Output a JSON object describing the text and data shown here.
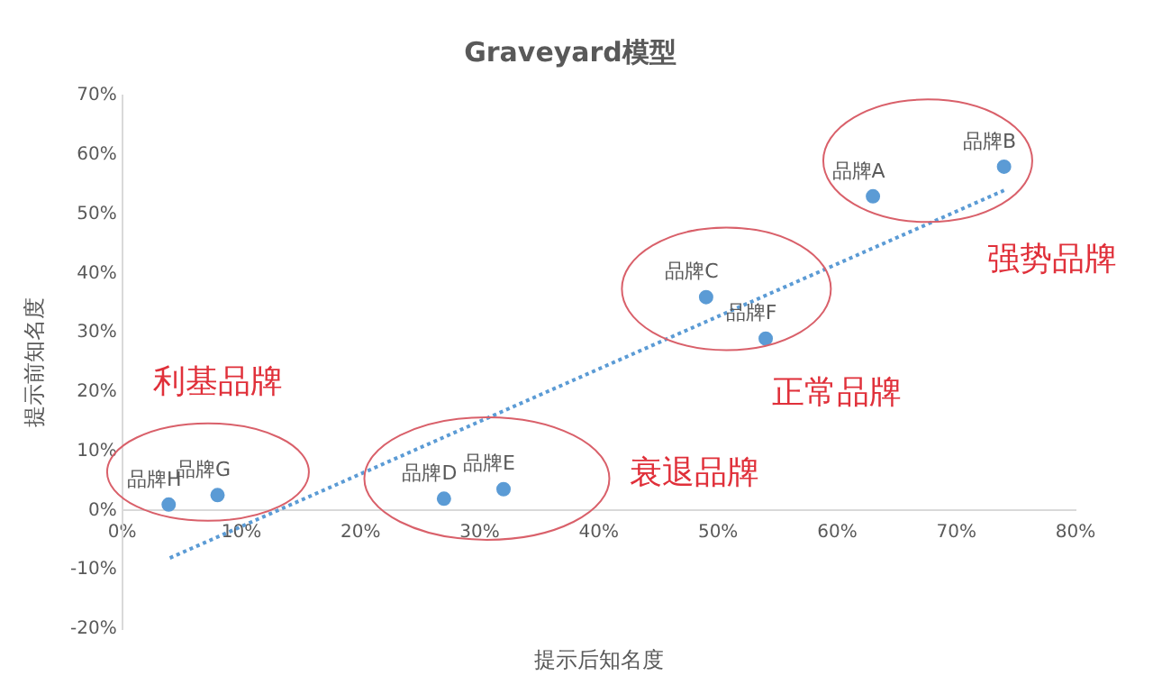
{
  "chart_data": {
    "type": "scatter",
    "title": "Graveyard模型",
    "xlabel": "提示后知名度",
    "ylabel": "提示前知名度",
    "series": [
      {
        "name": "品牌A",
        "color": "#5b9bd5",
        "x": [
          63
        ],
        "values": [
          53
        ]
      },
      {
        "name": "品牌B",
        "color": "#5b9bd5",
        "x": [
          74
        ],
        "values": [
          58
        ]
      },
      {
        "name": "品牌C",
        "color": "#5b9bd5",
        "x": [
          49
        ],
        "values": [
          36
        ]
      },
      {
        "name": "品牌D",
        "color": "#5b9bd5",
        "x": [
          27
        ],
        "values": [
          2
        ]
      },
      {
        "name": "品牌E",
        "color": "#5b9bd5",
        "x": [
          32
        ],
        "values": [
          3.6
        ]
      },
      {
        "name": "品牌F",
        "color": "#5b9bd5",
        "x": [
          54
        ],
        "values": [
          29
        ]
      },
      {
        "name": "品牌G",
        "color": "#5b9bd5",
        "x": [
          8
        ],
        "values": [
          2.6
        ]
      },
      {
        "name": "品牌H",
        "color": "#5b9bd5",
        "x": [
          3.9
        ],
        "values": [
          1
        ]
      },
      {
        "type": "line",
        "color": "#5b9bd5",
        "x": [
          4,
          74
        ],
        "values": [
          -8,
          54
        ],
        "line_style": "dotted",
        "marker": "none"
      }
    ],
    "annotations": [
      "利基品牌",
      "衰退品牌",
      "正常品牌",
      "强势品牌"
    ],
    "marker": "circle",
    "grid": false,
    "legend": false,
    "xlim": [
      0,
      80
    ],
    "xticks": [
      {
        "value": 0,
        "label": "0%"
      },
      {
        "value": 10,
        "label": "10%"
      },
      {
        "value": 20,
        "label": "20%"
      },
      {
        "value": 30,
        "label": "30%"
      },
      {
        "value": 40,
        "label": "40%"
      },
      {
        "value": 50,
        "label": "50%"
      },
      {
        "value": 60,
        "label": "60%"
      },
      {
        "value": 70,
        "label": "70%"
      },
      {
        "value": 80,
        "label": "80%"
      }
    ],
    "ylim": [
      -20,
      70
    ],
    "yticks": [
      {
        "value": -20,
        "label": "-20%"
      },
      {
        "value": -10,
        "label": "-10%"
      },
      {
        "value": 0,
        "label": "0%"
      },
      {
        "value": 10,
        "label": "10%"
      },
      {
        "value": 20,
        "label": "20%"
      },
      {
        "value": 30,
        "label": "30%"
      },
      {
        "value": 40,
        "label": "40%"
      },
      {
        "value": 50,
        "label": "50%"
      },
      {
        "value": 60,
        "label": "60%"
      },
      {
        "value": 70,
        "label": "70%"
      }
    ]
  }
}
